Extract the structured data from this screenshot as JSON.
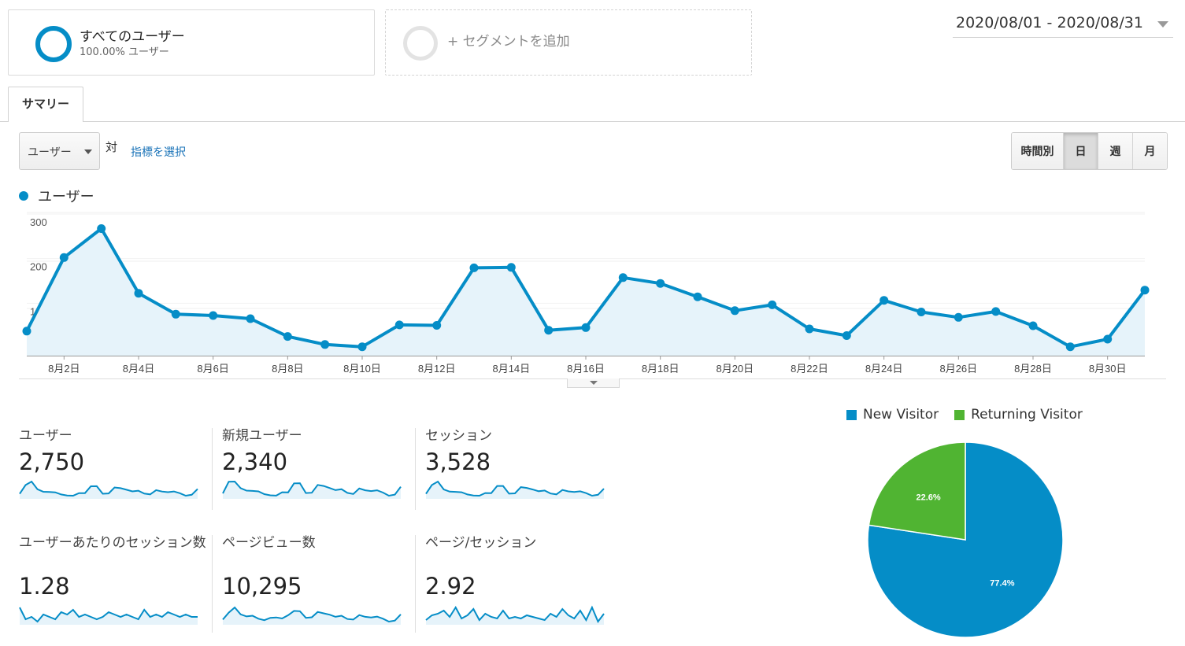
{
  "segments": {
    "all_users": {
      "title": "すべてのユーザー",
      "subtitle": "100.00% ユーザー"
    },
    "add_segment": {
      "label": "+ セグメントを追加"
    }
  },
  "date_range": "2020/08/01 - 2020/08/31",
  "tabs": {
    "summary": "サマリー"
  },
  "toolbar": {
    "metric_select": "ユーザー",
    "vs": "対",
    "choose_metric": "指標を選択",
    "periods": {
      "hourly": "時間別",
      "day": "日",
      "week": "週",
      "month": "月"
    },
    "active_period": "day"
  },
  "colors": {
    "primary": "#058dc7",
    "area_fill": "#e6f3fa",
    "returning": "#50b432"
  },
  "chart_data": [
    {
      "type": "line",
      "legend": "ユーザー",
      "series": [
        {
          "name": "ユーザー",
          "values": [
            55,
            220,
            285,
            140,
            93,
            90,
            83,
            43,
            25,
            20,
            69,
            68,
            197,
            198,
            57,
            63,
            175,
            162,
            132,
            101,
            114,
            60,
            45,
            124,
            98,
            86,
            99,
            67,
            20,
            37,
            147
          ]
        }
      ],
      "x": [
        "8月1日",
        "8月2日",
        "8月3日",
        "8月4日",
        "8月5日",
        "8月6日",
        "8月7日",
        "8月8日",
        "8月9日",
        "8月10日",
        "8月11日",
        "8月12日",
        "8月13日",
        "8月14日",
        "8月15日",
        "8月16日",
        "8月17日",
        "8月18日",
        "8月19日",
        "8月20日",
        "8月21日",
        "8月22日",
        "8月23日",
        "8月24日",
        "8月25日",
        "8月26日",
        "8月27日",
        "8月28日",
        "8月29日",
        "8月30日",
        "8月31日"
      ],
      "x_tick_labels": [
        "8月2日",
        "8月4日",
        "8月6日",
        "8月8日",
        "8月10日",
        "8月12日",
        "8月14日",
        "8月16日",
        "8月18日",
        "8月20日",
        "8月22日",
        "8月24日",
        "8月26日",
        "8月28日",
        "8月30日"
      ],
      "y_tick_labels": [
        "300",
        "200",
        "100"
      ],
      "ylim": [
        0,
        300
      ],
      "grid": true
    },
    {
      "type": "pie",
      "legend_position": "top",
      "slices": [
        {
          "label": "New Visitor",
          "value": 77.4,
          "display": "77.4%",
          "color": "#058dc7"
        },
        {
          "label": "Returning Visitor",
          "value": 22.6,
          "display": "22.6%",
          "color": "#50b432"
        }
      ]
    }
  ],
  "stats": [
    {
      "label": "ユーザー",
      "value": "2,750",
      "spark": [
        55,
        220,
        285,
        140,
        93,
        90,
        83,
        43,
        25,
        20,
        69,
        68,
        197,
        198,
        57,
        63,
        175,
        162,
        132,
        101,
        114,
        60,
        45,
        124,
        98,
        86,
        99,
        67,
        20,
        37,
        147
      ]
    },
    {
      "label": "新規ユーザー",
      "value": "2,340",
      "spark": [
        45,
        190,
        192,
        110,
        80,
        76,
        70,
        36,
        22,
        18,
        60,
        58,
        170,
        172,
        50,
        54,
        150,
        138,
        112,
        86,
        98,
        52,
        38,
        106,
        84,
        74,
        84,
        56,
        17,
        31,
        128
      ]
    },
    {
      "label": "セッション",
      "value": "3,528",
      "spark": [
        70,
        270,
        350,
        170,
        120,
        115,
        105,
        55,
        32,
        26,
        88,
        86,
        250,
        250,
        72,
        80,
        222,
        205,
        168,
        128,
        145,
        76,
        57,
        158,
        125,
        110,
        126,
        85,
        26,
        47,
        187
      ]
    },
    {
      "label": "ユーザーあたりのセッション数",
      "value": "1.28",
      "spark": [
        1.31,
        1.26,
        1.27,
        1.25,
        1.28,
        1.27,
        1.26,
        1.29,
        1.28,
        1.3,
        1.27,
        1.28,
        1.27,
        1.26,
        1.27,
        1.29,
        1.28,
        1.27,
        1.28,
        1.27,
        1.26,
        1.3,
        1.27,
        1.28,
        1.27,
        1.29,
        1.28,
        1.27,
        1.28,
        1.27,
        1.27
      ]
    },
    {
      "label": "ページビュー数",
      "value": "10,295",
      "spark": [
        200,
        600,
        900,
        500,
        380,
        420,
        250,
        160,
        300,
        320,
        260,
        450,
        700,
        680,
        300,
        330,
        640,
        560,
        480,
        360,
        420,
        230,
        200,
        460,
        360,
        320,
        370,
        250,
        80,
        140,
        500
      ]
    },
    {
      "label": "ページ/セッション",
      "value": "2.92",
      "spark": [
        2.6,
        2.9,
        3.0,
        3.2,
        2.8,
        3.4,
        2.7,
        2.9,
        3.3,
        2.6,
        3.0,
        2.8,
        2.7,
        3.2,
        2.7,
        2.8,
        2.7,
        2.9,
        2.8,
        2.7,
        2.6,
        3.0,
        2.8,
        3.3,
        2.9,
        2.7,
        3.2,
        2.6,
        3.4,
        2.5,
        3.0
      ]
    }
  ]
}
